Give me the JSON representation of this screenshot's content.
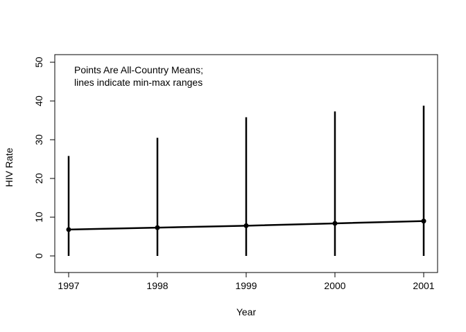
{
  "chart_data": {
    "type": "line",
    "title": "",
    "xlabel": "Year",
    "ylabel": "HIV Rate",
    "x": [
      1997,
      1998,
      1999,
      2000,
      2001
    ],
    "xticks": [
      "1997",
      "1998",
      "1999",
      "2000",
      "2001"
    ],
    "yticks": [
      "0",
      "10",
      "20",
      "30",
      "40",
      "50"
    ],
    "ylim": [
      0,
      50
    ],
    "xlim": [
      1997,
      2001
    ],
    "series": [
      {
        "values": [
          6.8,
          7.3,
          7.8,
          8.4,
          9.0
        ]
      }
    ],
    "ranges": {
      "min": [
        0,
        0,
        0,
        0,
        0
      ],
      "max": [
        25.8,
        30.5,
        35.8,
        37.3,
        38.8
      ]
    },
    "annotation": {
      "line1": "Points Are All-Country Means;",
      "line2": "lines indicate min-max ranges"
    },
    "grid": false,
    "colors": {
      "line": "#000000",
      "point": "#000000"
    }
  }
}
